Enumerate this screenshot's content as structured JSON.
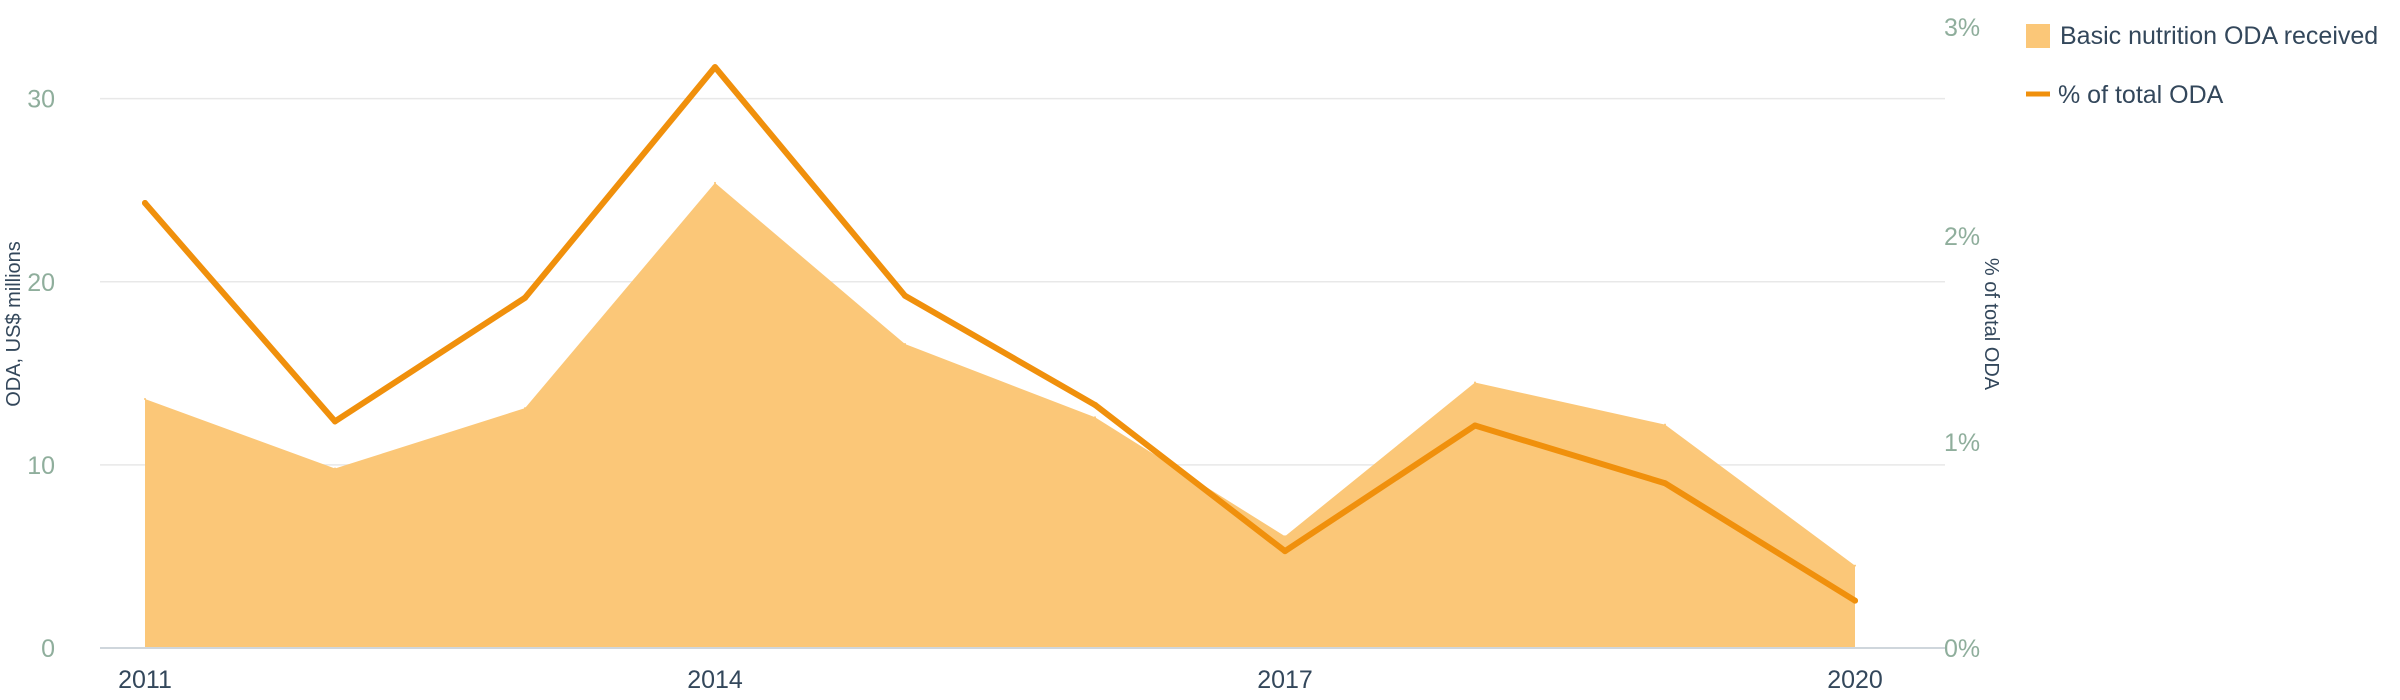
{
  "chart_data": {
    "type": "area",
    "categories": [
      "2011",
      "2012",
      "2013",
      "2014",
      "2015",
      "2016",
      "2017",
      "2018",
      "2019",
      "2020"
    ],
    "x_tick_labels": [
      "2011",
      "2014",
      "2017",
      "2020"
    ],
    "series": [
      {
        "name": "Basic nutrition ODA received",
        "type": "area",
        "axis": "left",
        "values": [
          13.6,
          9.8,
          13.1,
          25.4,
          16.6,
          12.6,
          6.1,
          14.5,
          12.2,
          4.5
        ],
        "color": "#fbc778"
      },
      {
        "name": "% of total ODA",
        "type": "line",
        "axis": "right",
        "values": [
          2.16,
          1.1,
          1.7,
          2.82,
          1.71,
          1.18,
          0.47,
          1.08,
          0.8,
          0.23
        ],
        "color": "#f0900c"
      }
    ],
    "y_left": {
      "label": "ODA, US$ millions",
      "range": [
        0,
        33.75
      ],
      "ticks": [
        0,
        10,
        20,
        30
      ],
      "tick_labels": [
        "0",
        "10",
        "20",
        "30"
      ]
    },
    "y_right": {
      "label": "% of total ODA",
      "range": [
        0,
        3
      ],
      "ticks": [
        0,
        1,
        2,
        3
      ],
      "tick_labels": [
        "0%",
        "1%",
        "2%",
        "3%"
      ]
    },
    "grid": true,
    "legend": "top-right"
  }
}
